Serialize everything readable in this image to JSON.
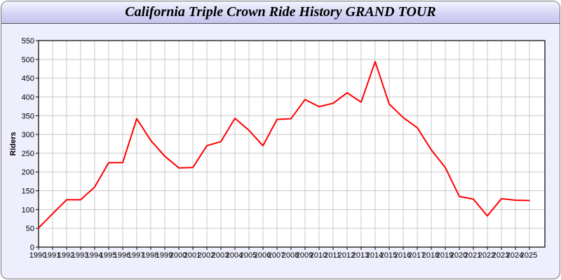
{
  "title": "California Triple Crown Ride History GRAND TOUR",
  "chart_data": {
    "type": "line",
    "title": "California Triple Crown Ride History GRAND TOUR",
    "xlabel": "",
    "ylabel": "Riders",
    "ylim": [
      0,
      550
    ],
    "yticks": [
      0,
      50,
      100,
      150,
      200,
      250,
      300,
      350,
      400,
      450,
      500,
      550
    ],
    "grid": true,
    "line_color": "#ff0000",
    "x": [
      1990,
      1991,
      1992,
      1993,
      1994,
      1995,
      1996,
      1997,
      1998,
      1999,
      2000,
      2001,
      2002,
      2003,
      2004,
      2005,
      2006,
      2007,
      2008,
      2009,
      2010,
      2011,
      2012,
      2013,
      2014,
      2015,
      2016,
      2017,
      2018,
      2019,
      2020,
      2021,
      2022,
      2023,
      2024,
      2025
    ],
    "series": [
      {
        "values": [
          51,
          89,
          126,
          126,
          160,
          225,
          225,
          342,
          284,
          242,
          211,
          212,
          270,
          281,
          343,
          311,
          270,
          340,
          342,
          393,
          374,
          383,
          411,
          386,
          494,
          381,
          345,
          318,
          259,
          212,
          135,
          128,
          83,
          129,
          125,
          124
        ]
      }
    ]
  }
}
